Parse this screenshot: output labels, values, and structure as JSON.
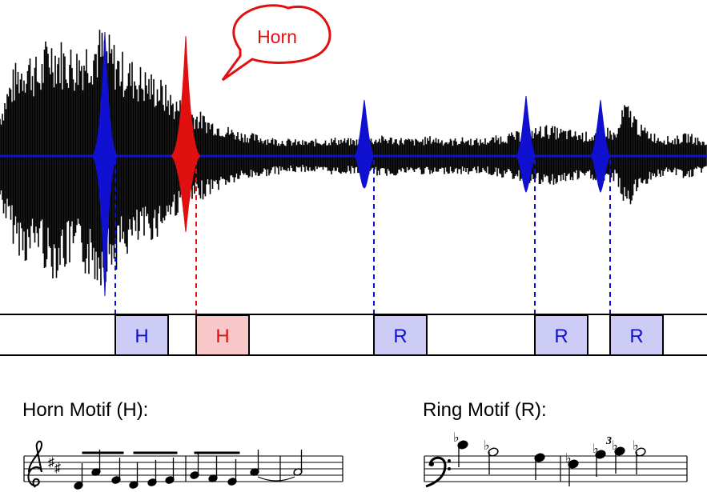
{
  "callout": {
    "text": "Horn",
    "color": "#e01010"
  },
  "colors": {
    "wave": "#000000",
    "blue": "#1010d0",
    "red": "#e01010",
    "box_blue_fill": "#ccccf6",
    "box_red_fill": "#f8c8c8",
    "baseline": "#1010d0"
  },
  "boxes": [
    {
      "label": "H",
      "kind": "blue"
    },
    {
      "label": "H",
      "kind": "red"
    },
    {
      "label": "R",
      "kind": "blue"
    },
    {
      "label": "R",
      "kind": "blue"
    },
    {
      "label": "R",
      "kind": "blue"
    }
  ],
  "motifs": {
    "horn": {
      "title": "Horn Motif (H):"
    },
    "ring": {
      "title": "Ring Motif (R):",
      "tuplet": "3"
    }
  }
}
